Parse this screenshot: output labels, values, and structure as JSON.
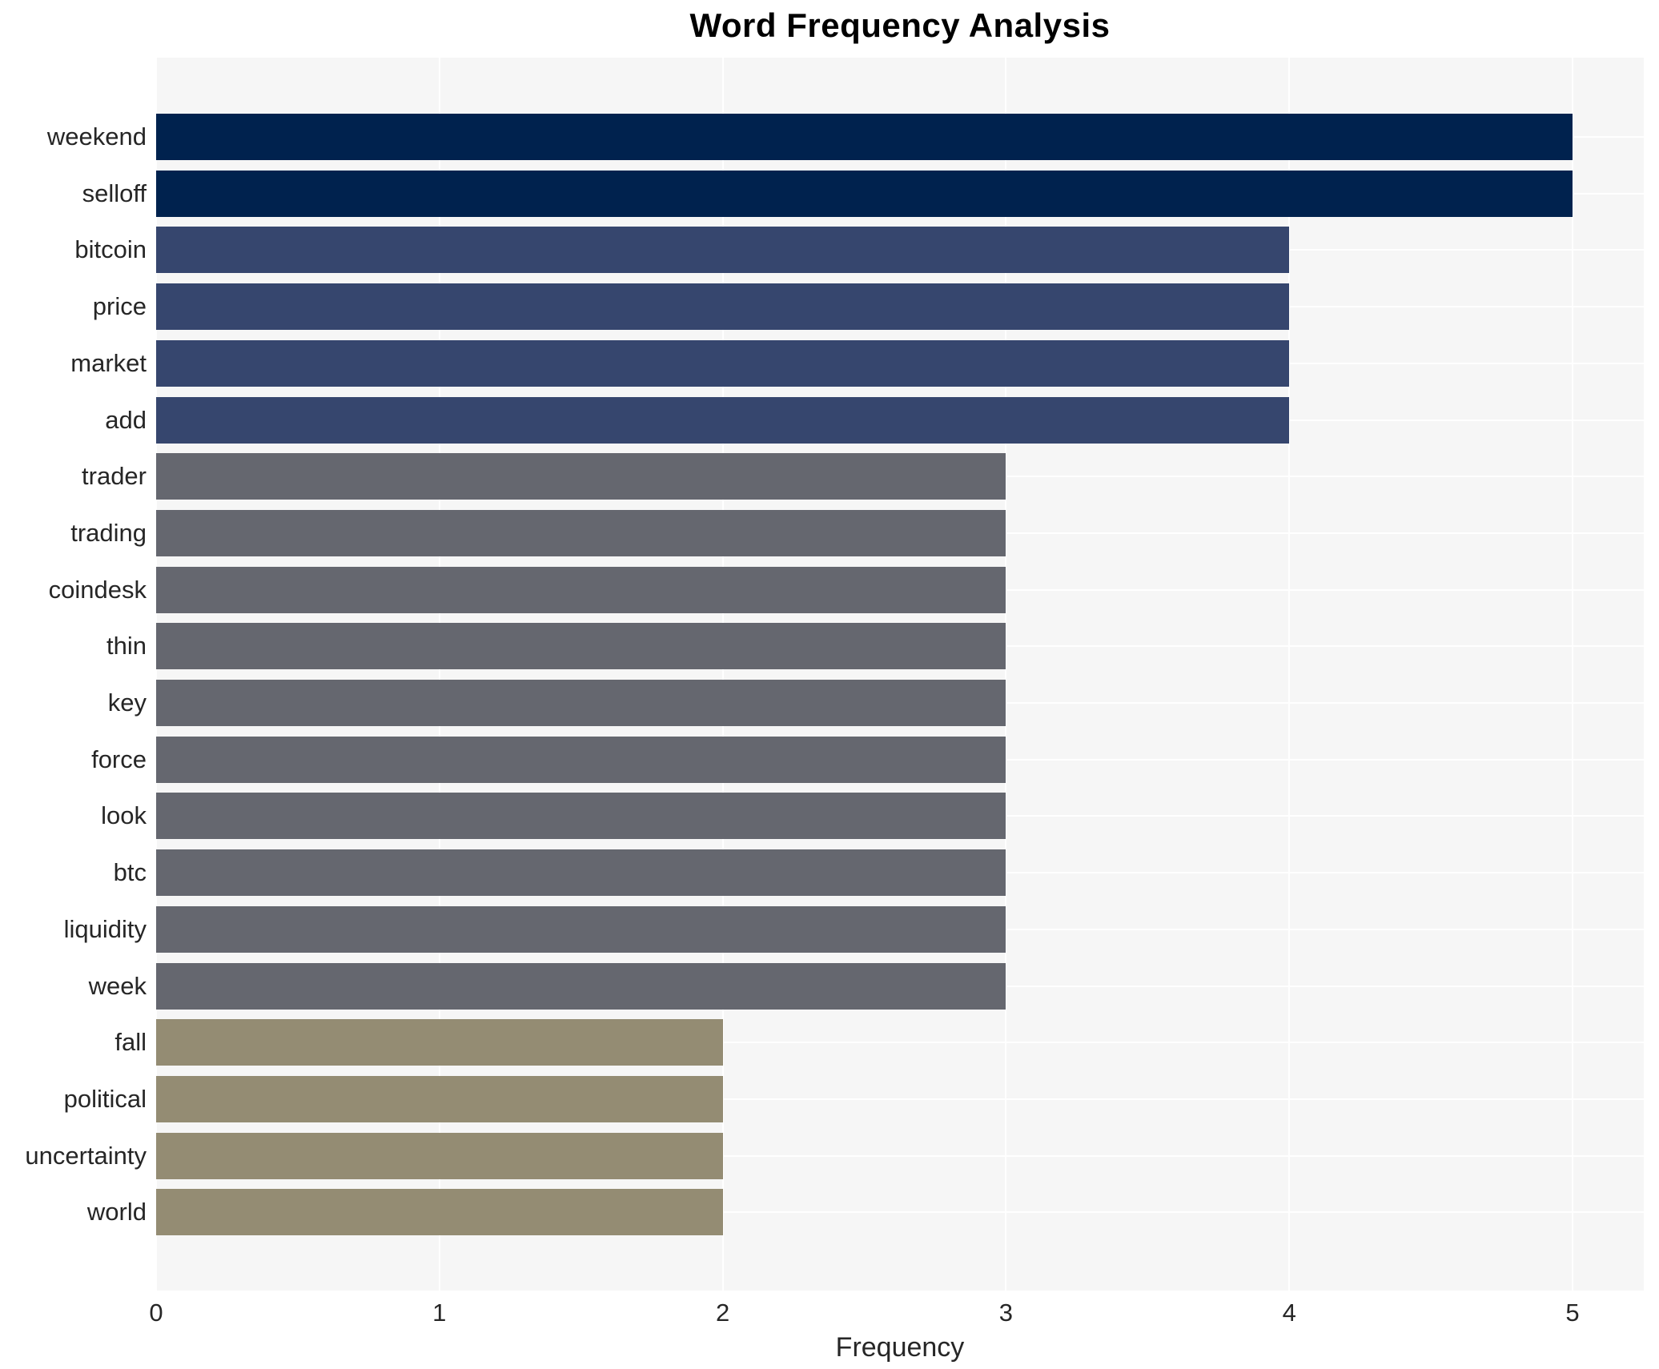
{
  "chart_data": {
    "type": "bar",
    "orientation": "horizontal",
    "title": "Word Frequency Analysis",
    "xlabel": "Frequency",
    "ylabel": "",
    "xlim": [
      0,
      5
    ],
    "xticks": [
      0,
      1,
      2,
      3,
      4,
      5
    ],
    "grid": true,
    "legend": false,
    "categories": [
      "weekend",
      "selloff",
      "bitcoin",
      "price",
      "market",
      "add",
      "trader",
      "trading",
      "coindesk",
      "thin",
      "key",
      "force",
      "look",
      "btc",
      "liquidity",
      "week",
      "fall",
      "political",
      "uncertainty",
      "world"
    ],
    "values": [
      5,
      5,
      4,
      4,
      4,
      4,
      3,
      3,
      3,
      3,
      3,
      3,
      3,
      3,
      3,
      3,
      2,
      2,
      2,
      2
    ],
    "bar_colors": [
      "#00224e",
      "#00224e",
      "#36466e",
      "#36466e",
      "#36466e",
      "#36466e",
      "#65676f",
      "#65676f",
      "#65676f",
      "#65676f",
      "#65676f",
      "#65676f",
      "#65676f",
      "#65676f",
      "#65676f",
      "#65676f",
      "#948c73",
      "#948c73",
      "#948c73",
      "#948c73"
    ]
  },
  "style": {
    "plot_background": "#f6f6f6",
    "gridline_color": "#ffffff",
    "title_color": "#000000",
    "tick_label_color": "#262626"
  }
}
